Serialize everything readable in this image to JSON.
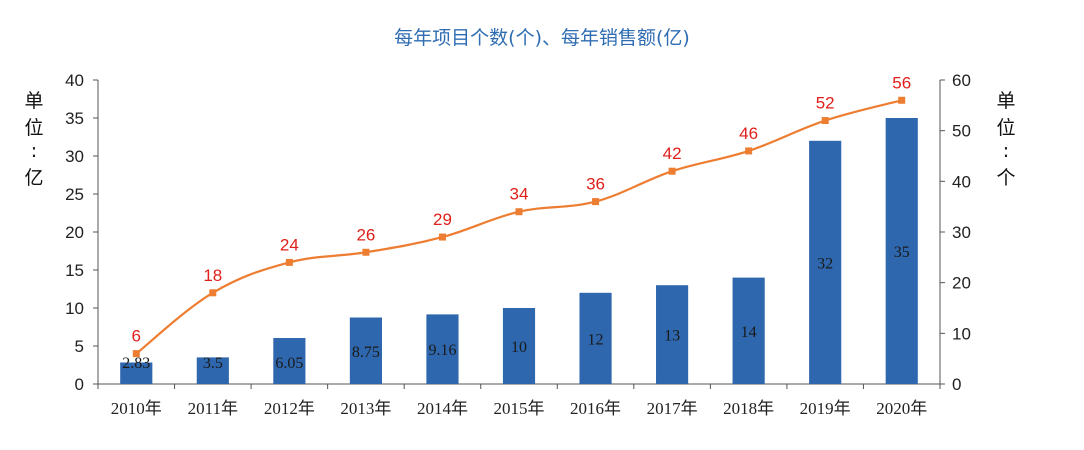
{
  "chart_data": {
    "type": "bar",
    "title": "每年项目个数(个)、每年销售额(亿)",
    "categories": [
      "2010年",
      "2011年",
      "2012年",
      "2013年",
      "2014年",
      "2015年",
      "2016年",
      "2017年",
      "2018年",
      "2019年",
      "2020年"
    ],
    "series": [
      {
        "type": "bar",
        "axis": "left",
        "values": [
          2.83,
          3.5,
          6.05,
          8.75,
          9.16,
          10,
          12,
          13,
          14,
          32,
          35
        ],
        "labels": [
          "2.83",
          "3.5",
          "6.05",
          "8.75",
          "9.16",
          "10",
          "12",
          "13",
          "14",
          "32",
          "35"
        ],
        "color": "#2e67ad"
      },
      {
        "type": "line",
        "axis": "right",
        "values": [
          6,
          18,
          24,
          26,
          29,
          34,
          36,
          42,
          46,
          52,
          56
        ],
        "labels": [
          "6",
          "18",
          "24",
          "26",
          "29",
          "34",
          "36",
          "42",
          "46",
          "52",
          "56"
        ],
        "color": "#ed7d31",
        "label_color": "#e0201b"
      }
    ],
    "y_left": {
      "label": [
        "单",
        "位",
        ":",
        "亿"
      ],
      "range": [
        0,
        40
      ],
      "ticks": [
        "0",
        "5",
        "10",
        "15",
        "20",
        "25",
        "30",
        "35",
        "40"
      ]
    },
    "y_right": {
      "label": [
        "单",
        "位",
        ":",
        "个"
      ],
      "range": [
        0,
        60
      ],
      "ticks": [
        "0",
        "10",
        "20",
        "30",
        "40",
        "50",
        "60"
      ]
    },
    "grid": false
  }
}
